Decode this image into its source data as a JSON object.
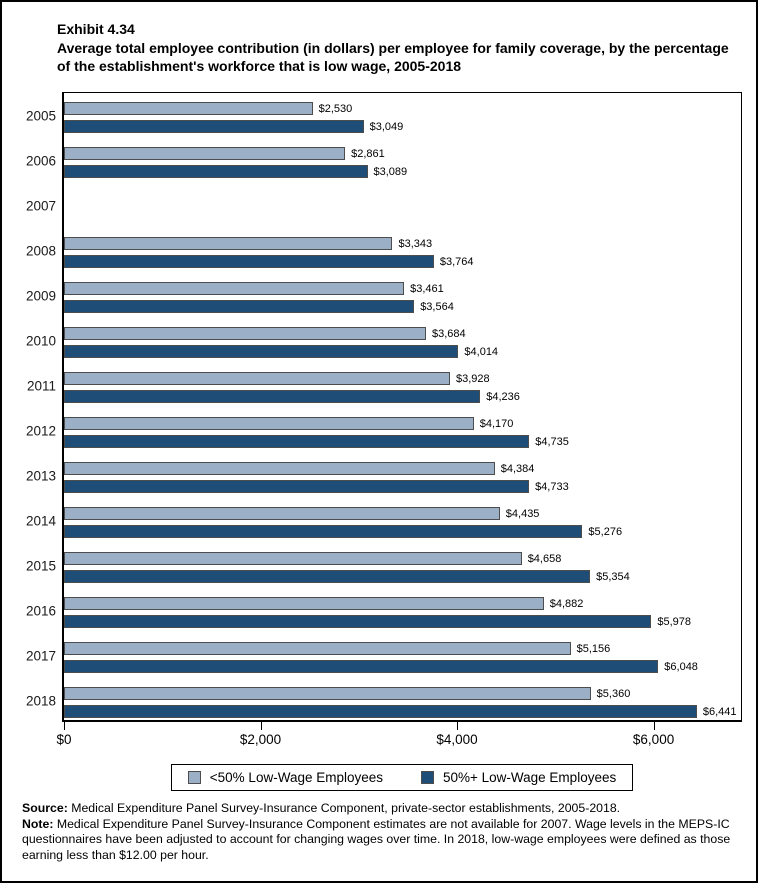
{
  "header": {
    "exhibit_label": "Exhibit 4.34",
    "title": "Average total employee contribution (in dollars) per employee for family coverage, by the percentage of the establishment's workforce that is low wage, 2005-2018"
  },
  "chart_data": {
    "type": "bar",
    "orientation": "horizontal",
    "title": "Average total employee contribution (in dollars) per employee for family coverage, by the percentage of the establishment's workforce that is low wage, 2005-2018",
    "categories": [
      "2005",
      "2006",
      "2007",
      "2008",
      "2009",
      "2010",
      "2011",
      "2012",
      "2013",
      "2014",
      "2015",
      "2016",
      "2017",
      "2018"
    ],
    "series": [
      {
        "name": "<50% Low-Wage Employees",
        "color": "#9BB0C7",
        "values": [
          2530,
          2861,
          null,
          3343,
          3461,
          3684,
          3928,
          4170,
          4384,
          4435,
          4658,
          4882,
          5156,
          5360
        ],
        "labels": [
          "$2,530",
          "$2,861",
          null,
          "$3,343",
          "$3,461",
          "$3,684",
          "$3,928",
          "$4,170",
          "$4,384",
          "$4,435",
          "$4,658",
          "$4,882",
          "$5,156",
          "$5,360"
        ]
      },
      {
        "name": "50%+ Low-Wage Employees",
        "color": "#1E4D77",
        "values": [
          3049,
          3089,
          null,
          3764,
          3564,
          4014,
          4236,
          4735,
          4733,
          5276,
          5354,
          5978,
          6048,
          6441
        ],
        "labels": [
          "$3,049",
          "$3,089",
          null,
          "$3,764",
          "$3,564",
          "$4,014",
          "$4,236",
          "$4,735",
          "$4,733",
          "$5,276",
          "$5,354",
          "$5,978",
          "$6,048",
          "$6,441"
        ]
      }
    ],
    "x_ticks": [
      {
        "value": 0,
        "label": "$0"
      },
      {
        "value": 2000,
        "label": "$2,000"
      },
      {
        "value": 4000,
        "label": "$4,000"
      },
      {
        "value": 6000,
        "label": "$6,000"
      }
    ],
    "xlim": [
      0,
      6900
    ],
    "xlabel": "",
    "ylabel": "",
    "grid": false,
    "legend_position": "bottom",
    "missing_data_note": "2007 estimates not available",
    "bar_border_color": "#4d4d4d",
    "axis_color": "#000000"
  },
  "notes": {
    "source_label": "Source:",
    "source_text": " Medical Expenditure Panel Survey-Insurance Component, private-sector establishments, 2005-2018.",
    "note_label": "Note:",
    "note_text": " Medical Expenditure Panel Survey-Insurance Component estimates are not available for 2007. Wage levels in the MEPS-IC questionnaires have been adjusted to account for changing wages over time. In 2018, low-wage employees were defined as those earning less than $12.00 per hour."
  }
}
